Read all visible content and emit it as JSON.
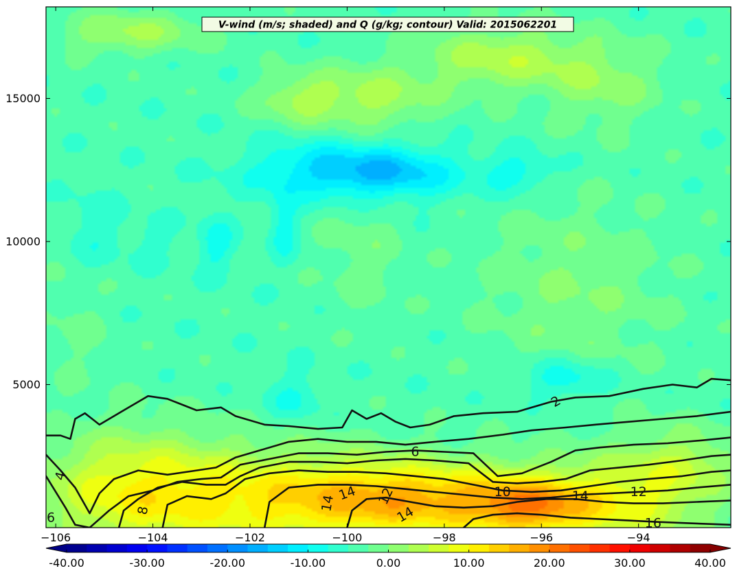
{
  "chart_data": {
    "type": "heatmap",
    "title": "V-wind (m/s; shaded) and Q (g/kg; contour) Valid: 2015062201",
    "xlim": [
      -106.2,
      -92.1
    ],
    "ylim": [
      0,
      18200
    ],
    "x_ticks": [
      -106,
      -104,
      -102,
      -100,
      -98,
      -96,
      -94
    ],
    "x_tick_labels": [
      "−106",
      "−104",
      "−102",
      "−100",
      "−98",
      "−96",
      "−94"
    ],
    "y_ticks": [
      5000,
      10000,
      15000
    ],
    "y_tick_labels": [
      "5000",
      "10000",
      "15000"
    ],
    "colorbar": {
      "orientation": "horizontal",
      "extend": "both",
      "min": -40,
      "max": 40,
      "step": 2.5,
      "ticks": [
        -40,
        -30,
        -20,
        -10,
        0,
        10,
        20,
        30,
        40
      ],
      "tick_labels": [
        "-40.00",
        "-30.00",
        "-20.00",
        "-10.00",
        "0.00",
        "10.00",
        "20.00",
        "30.00",
        "40.00"
      ]
    },
    "shaded_field": {
      "name": "V-wind",
      "units": "m/s",
      "background_value": -4,
      "features": [
        {
          "x": -100.2,
          "y": 12500,
          "sx": 1.2,
          "sy": 700,
          "v": -13
        },
        {
          "x": -98.9,
          "y": 12350,
          "sx": 0.9,
          "sy": 600,
          "v": -10
        },
        {
          "x": -96.5,
          "y": 12400,
          "sx": 0.6,
          "sy": 500,
          "v": -9
        },
        {
          "x": -101.3,
          "y": 10600,
          "sx": 0.2,
          "sy": 900,
          "v": -9
        },
        {
          "x": -102.7,
          "y": 9900,
          "sx": 0.25,
          "sy": 700,
          "v": -9
        },
        {
          "x": -105.2,
          "y": 10400,
          "sx": 0.4,
          "sy": 900,
          "v": -7
        },
        {
          "x": -104.0,
          "y": 10000,
          "sx": 0.4,
          "sy": 600,
          "v": -6
        },
        {
          "x": -95.5,
          "y": 5200,
          "sx": 0.6,
          "sy": 500,
          "v": -10
        },
        {
          "x": -101.1,
          "y": 4500,
          "sx": 0.4,
          "sy": 600,
          "v": -8
        },
        {
          "x": -99.5,
          "y": 15000,
          "sx": 0.9,
          "sy": 800,
          "v": 3
        },
        {
          "x": -101.0,
          "y": 15000,
          "sx": 0.6,
          "sy": 600,
          "v": 2
        },
        {
          "x": -96.8,
          "y": 16400,
          "sx": 1.2,
          "sy": 800,
          "v": 4
        },
        {
          "x": -104.5,
          "y": 17300,
          "sx": 1.0,
          "sy": 500,
          "v": 3
        },
        {
          "x": -94.7,
          "y": 15500,
          "sx": 0.8,
          "sy": 1000,
          "v": 1
        },
        {
          "x": -95.3,
          "y": 8300,
          "sx": 1.3,
          "sy": 2200,
          "v": 0
        },
        {
          "x": -99.7,
          "y": 9600,
          "sx": 0.6,
          "sy": 1500,
          "v": -1
        },
        {
          "x": -105.6,
          "y": 7000,
          "sx": 0.5,
          "sy": 1500,
          "v": -2
        },
        {
          "x": -98.5,
          "y": 1000,
          "sx": 2.0,
          "sy": 900,
          "v": 12
        },
        {
          "x": -96.2,
          "y": 700,
          "sx": 0.9,
          "sy": 700,
          "v": 10
        },
        {
          "x": -102.0,
          "y": 1000,
          "sx": 2.5,
          "sy": 1300,
          "v": 7
        },
        {
          "x": -94.2,
          "y": 900,
          "sx": 1.2,
          "sy": 1200,
          "v": 6
        },
        {
          "x": -104.5,
          "y": 1400,
          "sx": 1.3,
          "sy": 1500,
          "v": 4
        },
        {
          "x": -93.0,
          "y": 2300,
          "sx": 0.8,
          "sy": 900,
          "v": 2
        }
      ]
    },
    "contours": {
      "name": "Q",
      "units": "g/kg",
      "lines": [
        {
          "level": 2,
          "points": [
            [
              -106.2,
              3220
            ],
            [
              -105.9,
              3220
            ],
            [
              -105.7,
              3100
            ],
            [
              -105.6,
              3800
            ],
            [
              -105.4,
              4000
            ],
            [
              -105.1,
              3600
            ],
            [
              -104.6,
              4100
            ],
            [
              -104.1,
              4600
            ],
            [
              -103.7,
              4500
            ],
            [
              -103.1,
              4100
            ],
            [
              -102.6,
              4200
            ],
            [
              -102.3,
              3900
            ],
            [
              -101.7,
              3600
            ],
            [
              -101.2,
              3550
            ],
            [
              -100.6,
              3450
            ],
            [
              -100.1,
              3500
            ],
            [
              -99.9,
              4100
            ],
            [
              -99.6,
              3800
            ],
            [
              -99.3,
              4000
            ],
            [
              -99.0,
              3700
            ],
            [
              -98.7,
              3500
            ],
            [
              -98.3,
              3600
            ],
            [
              -97.8,
              3900
            ],
            [
              -97.2,
              4000
            ],
            [
              -96.5,
              4050
            ],
            [
              -95.8,
              4400
            ],
            [
              -95.3,
              4550
            ],
            [
              -94.6,
              4600
            ],
            [
              -93.9,
              4850
            ],
            [
              -93.3,
              5000
            ],
            [
              -92.8,
              4900
            ],
            [
              -92.5,
              5200
            ],
            [
              -92.1,
              5150
            ]
          ]
        },
        {
          "level": 4,
          "points": [
            [
              -106.2,
              2550
            ],
            [
              -105.9,
              2000
            ],
            [
              -105.6,
              1400
            ],
            [
              -105.3,
              500
            ],
            [
              -105.1,
              1200
            ],
            [
              -104.8,
              1700
            ],
            [
              -104.3,
              2000
            ],
            [
              -103.7,
              1850
            ],
            [
              -103.1,
              2000
            ],
            [
              -102.7,
              2100
            ],
            [
              -102.3,
              2450
            ],
            [
              -101.8,
              2700
            ],
            [
              -101.2,
              3000
            ],
            [
              -100.6,
              3100
            ],
            [
              -100.0,
              3000
            ],
            [
              -99.4,
              3000
            ],
            [
              -98.8,
              2900
            ],
            [
              -98.2,
              3000
            ],
            [
              -97.5,
              3100
            ],
            [
              -96.8,
              3250
            ],
            [
              -96.2,
              3400
            ],
            [
              -95.5,
              3500
            ],
            [
              -94.9,
              3600
            ],
            [
              -94.2,
              3700
            ],
            [
              -93.5,
              3800
            ],
            [
              -92.8,
              3900
            ],
            [
              -92.1,
              4050
            ]
          ]
        },
        {
          "level": 6,
          "points": [
            [
              -106.2,
              1800
            ],
            [
              -105.8,
              700
            ],
            [
              -105.6,
              100
            ],
            [
              -105.3,
              0
            ],
            [
              -104.9,
              600
            ],
            [
              -104.5,
              1100
            ],
            [
              -104.0,
              1300
            ],
            [
              -103.5,
              1600
            ],
            [
              -103.0,
              1700
            ],
            [
              -102.6,
              1750
            ],
            [
              -102.2,
              2200
            ],
            [
              -101.6,
              2400
            ],
            [
              -101.0,
              2600
            ],
            [
              -100.4,
              2600
            ],
            [
              -99.8,
              2550
            ],
            [
              -99.2,
              2650
            ],
            [
              -98.6,
              2700
            ],
            [
              -98.0,
              2650
            ],
            [
              -97.4,
              2600
            ],
            [
              -96.9,
              1800
            ],
            [
              -96.4,
              1900
            ],
            [
              -95.8,
              2300
            ],
            [
              -95.3,
              2700
            ],
            [
              -94.8,
              2800
            ],
            [
              -94.1,
              2900
            ],
            [
              -93.4,
              2950
            ],
            [
              -92.7,
              3050
            ],
            [
              -92.1,
              3150
            ]
          ]
        },
        {
          "level": 8,
          "points": [
            [
              -104.7,
              0
            ],
            [
              -104.6,
              600
            ],
            [
              -104.3,
              1000
            ],
            [
              -103.9,
              1400
            ],
            [
              -103.4,
              1600
            ],
            [
              -102.9,
              1500
            ],
            [
              -102.5,
              1500
            ],
            [
              -102.2,
              1800
            ],
            [
              -101.8,
              2100
            ],
            [
              -101.2,
              2300
            ],
            [
              -100.6,
              2300
            ],
            [
              -100.0,
              2250
            ],
            [
              -99.4,
              2350
            ],
            [
              -98.8,
              2400
            ],
            [
              -98.2,
              2350
            ],
            [
              -97.5,
              2250
            ],
            [
              -97.0,
              1600
            ],
            [
              -96.5,
              1550
            ],
            [
              -96.0,
              1600
            ],
            [
              -95.5,
              1700
            ],
            [
              -95.0,
              2000
            ],
            [
              -94.4,
              2100
            ],
            [
              -93.8,
              2200
            ],
            [
              -93.1,
              2350
            ],
            [
              -92.5,
              2500
            ],
            [
              -92.1,
              2550
            ]
          ]
        },
        {
          "level": 10,
          "points": [
            [
              -103.8,
              0
            ],
            [
              -103.7,
              800
            ],
            [
              -103.3,
              1100
            ],
            [
              -102.8,
              1000
            ],
            [
              -102.5,
              1200
            ],
            [
              -102.1,
              1700
            ],
            [
              -101.6,
              1900
            ],
            [
              -101.0,
              2000
            ],
            [
              -100.4,
              1950
            ],
            [
              -99.8,
              1950
            ],
            [
              -99.2,
              1900
            ],
            [
              -98.6,
              1800
            ],
            [
              -98.0,
              1700
            ],
            [
              -97.4,
              1500
            ],
            [
              -96.8,
              1300
            ],
            [
              -96.2,
              1250
            ],
            [
              -95.6,
              1300
            ],
            [
              -95.0,
              1450
            ],
            [
              -94.4,
              1600
            ],
            [
              -93.8,
              1700
            ],
            [
              -93.1,
              1800
            ],
            [
              -92.5,
              1950
            ],
            [
              -92.1,
              2000
            ]
          ]
        },
        {
          "level": 12,
          "points": [
            [
              -101.7,
              0
            ],
            [
              -101.6,
              900
            ],
            [
              -101.2,
              1400
            ],
            [
              -100.6,
              1500
            ],
            [
              -100.0,
              1500
            ],
            [
              -99.4,
              1450
            ],
            [
              -98.8,
              1350
            ],
            [
              -98.2,
              1250
            ],
            [
              -97.6,
              1150
            ],
            [
              -97.0,
              1050
            ],
            [
              -96.4,
              1000
            ],
            [
              -95.8,
              1050
            ],
            [
              -95.2,
              1150
            ],
            [
              -94.6,
              1200
            ],
            [
              -94.0,
              1250
            ],
            [
              -93.4,
              1300
            ],
            [
              -92.8,
              1400
            ],
            [
              -92.1,
              1500
            ]
          ]
        },
        {
          "level": 14,
          "points": [
            [
              -100.0,
              0
            ],
            [
              -99.9,
              600
            ],
            [
              -99.6,
              1000
            ],
            [
              -99.2,
              1050
            ],
            [
              -98.7,
              900
            ],
            [
              -98.2,
              750
            ],
            [
              -97.6,
              700
            ],
            [
              -97.0,
              750
            ],
            [
              -96.5,
              900
            ],
            [
              -95.9,
              1000
            ],
            [
              -95.3,
              1000
            ],
            [
              -94.7,
              900
            ],
            [
              -94.1,
              850
            ],
            [
              -93.5,
              850
            ],
            [
              -92.8,
              900
            ],
            [
              -92.1,
              950
            ]
          ]
        },
        {
          "level": 16,
          "points": [
            [
              -97.6,
              0
            ],
            [
              -97.4,
              300
            ],
            [
              -97.0,
              450
            ],
            [
              -96.5,
              500
            ],
            [
              -96.0,
              450
            ],
            [
              -95.4,
              350
            ],
            [
              -94.8,
              300
            ],
            [
              -94.2,
              250
            ],
            [
              -93.6,
              200
            ],
            [
              -92.9,
              150
            ],
            [
              -92.1,
              100
            ]
          ]
        }
      ],
      "labels": [
        {
          "text": "2",
          "x": -95.7,
          "y": 4400,
          "angle": -30
        },
        {
          "text": "4",
          "x": -105.9,
          "y": 1800,
          "angle": -75
        },
        {
          "text": "6",
          "x": -106.1,
          "y": 350,
          "angle": 0
        },
        {
          "text": "6",
          "x": -98.6,
          "y": 2650,
          "angle": 0
        },
        {
          "text": "8",
          "x": -104.2,
          "y": 600,
          "angle": -80
        },
        {
          "text": "10",
          "x": -96.8,
          "y": 1250,
          "angle": 0
        },
        {
          "text": "12",
          "x": -99.2,
          "y": 1100,
          "angle": -65
        },
        {
          "text": "12",
          "x": -94.0,
          "y": 1250,
          "angle": 0
        },
        {
          "text": "14",
          "x": -100.4,
          "y": 850,
          "angle": -80
        },
        {
          "text": "14",
          "x": -100.0,
          "y": 1200,
          "angle": -20
        },
        {
          "text": "14",
          "x": -98.8,
          "y": 450,
          "angle": -30
        },
        {
          "text": "14",
          "x": -95.2,
          "y": 1100,
          "angle": 0
        },
        {
          "text": "16",
          "x": -93.7,
          "y": 150,
          "angle": 0
        }
      ]
    }
  }
}
